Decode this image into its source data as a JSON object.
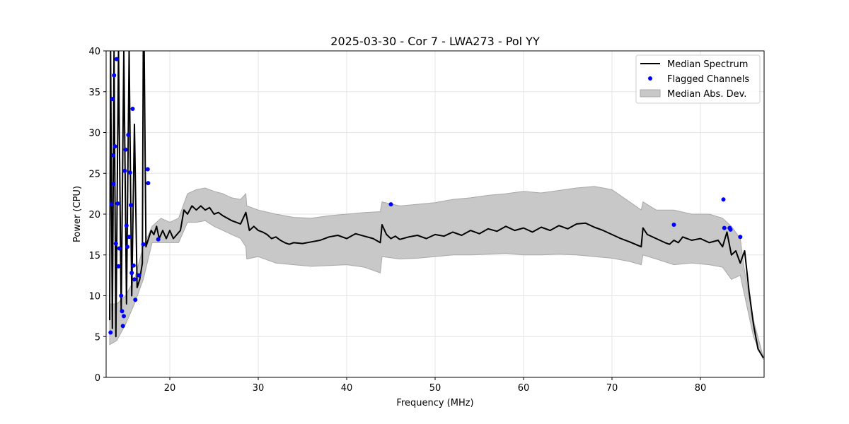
{
  "chart_data": {
    "type": "line",
    "title": "2025-03-30 - Cor 7 - LWA273 - Pol YY",
    "xlabel": "Frequency (MHz)",
    "ylabel": "Power (CPU)",
    "xlim": [
      12.8,
      87.2
    ],
    "ylim": [
      0,
      40
    ],
    "xticks": [
      20,
      30,
      40,
      50,
      60,
      70,
      80
    ],
    "yticks": [
      0,
      5,
      10,
      15,
      20,
      25,
      30,
      35,
      40
    ],
    "grid": true,
    "legend_position": "top-right",
    "legend": [
      "Median Spectrum",
      "Flagged Channels",
      "Median Abs. Dev."
    ],
    "colors": {
      "median_line": "#000000",
      "flagged": "#0000ff",
      "band_fill": "#c8c8c8",
      "band_edge": "#a8a8a8"
    },
    "series": [
      {
        "name": "Median Spectrum",
        "x": [
          13.2,
          13.3,
          13.5,
          13.7,
          13.9,
          14.2,
          14.5,
          14.8,
          15.1,
          15.4,
          15.7,
          16.0,
          16.3,
          16.6,
          16.9,
          17.0,
          17.1,
          17.3,
          17.6,
          17.9,
          18.2,
          18.5,
          18.8,
          19.2,
          19.6,
          20.0,
          20.4,
          20.8,
          21.2,
          21.6,
          22.0,
          22.5,
          23.0,
          23.5,
          24.0,
          24.5,
          25.0,
          25.5,
          26.0,
          26.5,
          27.0,
          27.5,
          28.0,
          28.6,
          29.0,
          29.5,
          30.0,
          30.5,
          31.0,
          31.5,
          32.0,
          32.5,
          33.0,
          33.5,
          34.0,
          35.0,
          36.0,
          37.0,
          38.0,
          39.0,
          40.0,
          41.0,
          42.0,
          43.0,
          43.8,
          44.0,
          44.5,
          45.0,
          45.5,
          46.0,
          47.0,
          48.0,
          49.0,
          50.0,
          51.0,
          52.0,
          53.0,
          54.0,
          55.0,
          56.0,
          57.0,
          58.0,
          59.0,
          60.0,
          61.0,
          62.0,
          63.0,
          64.0,
          65.0,
          66.0,
          67.0,
          68.0,
          69.0,
          70.0,
          71.0,
          72.0,
          73.3,
          73.5,
          74.0,
          75.0,
          76.0,
          76.5,
          77.0,
          77.5,
          78.0,
          79.0,
          80.0,
          81.0,
          82.0,
          82.5,
          83.0,
          83.5,
          84.0,
          84.5,
          85.0,
          85.5,
          86.0,
          86.5,
          87.1
        ],
        "y": [
          7.0,
          40.0,
          6.0,
          40.0,
          5.0,
          40.0,
          8.0,
          40.0,
          9.0,
          40.0,
          10.0,
          31.0,
          11.0,
          12.0,
          14.0,
          40.0,
          40.0,
          16.0,
          17.0,
          18.0,
          17.5,
          18.5,
          17.0,
          18.0,
          17.0,
          18.0,
          17.0,
          17.5,
          18.0,
          20.5,
          20.0,
          21.0,
          20.5,
          21.0,
          20.5,
          20.8,
          20.0,
          20.2,
          19.8,
          19.5,
          19.2,
          19.0,
          18.8,
          20.2,
          18.0,
          18.5,
          18.0,
          17.8,
          17.5,
          17.0,
          17.2,
          16.8,
          16.5,
          16.3,
          16.5,
          16.4,
          16.6,
          16.8,
          17.2,
          17.4,
          17.0,
          17.6,
          17.3,
          17.0,
          16.5,
          18.7,
          17.5,
          17.0,
          17.3,
          16.9,
          17.2,
          17.4,
          17.0,
          17.5,
          17.3,
          17.8,
          17.4,
          18.0,
          17.6,
          18.2,
          17.9,
          18.5,
          18.0,
          18.3,
          17.8,
          18.4,
          18.0,
          18.6,
          18.2,
          18.8,
          18.9,
          18.4,
          18.0,
          17.5,
          17.0,
          16.6,
          16.0,
          18.3,
          17.5,
          17.0,
          16.5,
          16.3,
          16.8,
          16.5,
          17.2,
          16.8,
          17.0,
          16.5,
          16.8,
          16.0,
          17.8,
          15.0,
          15.5,
          14.0,
          15.5,
          10.5,
          6.5,
          3.5,
          2.4
        ]
      },
      {
        "name": "Median Abs. Dev.",
        "x": [
          13.2,
          14.0,
          15.0,
          16.0,
          17.0,
          18.0,
          19.0,
          20.0,
          21.0,
          22.0,
          23.0,
          24.0,
          25.0,
          26.0,
          27.0,
          28.0,
          28.6,
          28.7,
          30.0,
          32.0,
          34.0,
          36.0,
          38.0,
          40.0,
          42.0,
          43.8,
          44.0,
          46.0,
          48.0,
          50.0,
          52.0,
          54.0,
          56.0,
          58.0,
          60.0,
          62.0,
          64.0,
          66.0,
          68.0,
          70.0,
          72.0,
          73.3,
          73.5,
          75.0,
          77.0,
          79.0,
          81.0,
          82.5,
          83.5,
          84.5,
          85.0,
          86.0,
          87.1
        ],
        "upper": [
          9.0,
          9.0,
          10.0,
          12.0,
          16.0,
          18.5,
          19.5,
          19.0,
          19.5,
          22.5,
          23.0,
          23.2,
          22.8,
          22.5,
          22.0,
          21.8,
          22.5,
          21.0,
          20.5,
          20.0,
          19.6,
          19.5,
          19.8,
          20.0,
          20.2,
          20.3,
          21.5,
          21.0,
          21.2,
          21.4,
          21.8,
          22.0,
          22.3,
          22.5,
          22.8,
          22.6,
          22.9,
          23.2,
          23.4,
          23.0,
          21.5,
          20.5,
          21.5,
          20.5,
          20.5,
          20.0,
          20.0,
          19.5,
          18.5,
          17.0,
          13.0,
          7.0,
          2.5
        ],
        "lower": [
          4.0,
          4.5,
          6.5,
          9.0,
          12.0,
          16.5,
          16.5,
          16.5,
          16.5,
          19.0,
          19.0,
          19.2,
          18.5,
          18.0,
          17.5,
          17.0,
          16.0,
          14.5,
          14.8,
          14.0,
          13.8,
          13.6,
          13.7,
          13.8,
          13.5,
          12.8,
          14.8,
          14.5,
          14.6,
          14.8,
          15.0,
          15.0,
          15.1,
          15.2,
          15.0,
          15.0,
          15.1,
          15.0,
          14.8,
          14.6,
          14.2,
          13.8,
          15.0,
          14.5,
          13.8,
          14.0,
          13.8,
          13.5,
          12.0,
          12.5,
          10.0,
          5.0,
          2.2
        ]
      },
      {
        "name": "Flagged Channels",
        "x": [
          13.3,
          13.4,
          13.5,
          13.6,
          13.65,
          13.7,
          13.8,
          13.9,
          14.0,
          14.1,
          14.2,
          14.3,
          14.5,
          14.6,
          14.7,
          14.8,
          14.9,
          15.0,
          15.1,
          15.2,
          15.3,
          15.4,
          15.5,
          15.6,
          15.7,
          15.8,
          15.9,
          16.0,
          16.1,
          16.5,
          17.0,
          17.5,
          17.55,
          18.7,
          45.0,
          77.0,
          82.6,
          82.7,
          83.3,
          83.4,
          84.5
        ],
        "y": [
          5.5,
          21.2,
          34.1,
          27.2,
          23.7,
          37.0,
          28.3,
          16.4,
          39.0,
          21.3,
          13.6,
          15.8,
          10.0,
          8.1,
          6.3,
          7.5,
          25.3,
          27.9,
          18.6,
          16.0,
          29.7,
          17.2,
          25.1,
          21.1,
          12.8,
          32.9,
          13.7,
          12.0,
          9.5,
          12.5,
          16.3,
          25.5,
          23.8,
          16.9,
          21.2,
          18.7,
          21.8,
          18.3,
          18.3,
          18.1,
          17.2
        ]
      }
    ]
  }
}
